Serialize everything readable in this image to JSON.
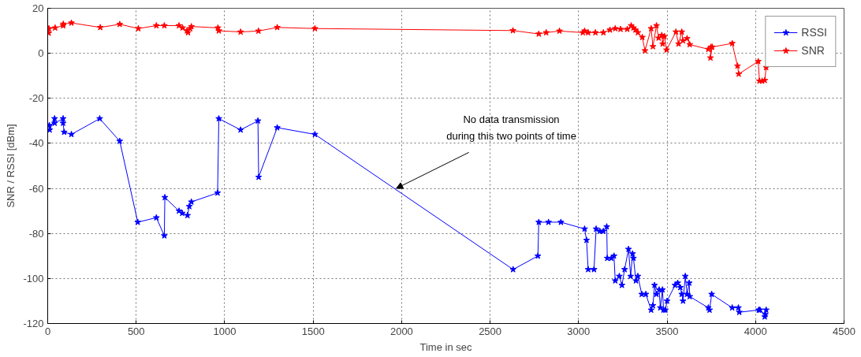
{
  "chart_data": {
    "type": "line",
    "xlabel": "Time in sec",
    "ylabel": "SNR / RSSI [dBm]",
    "xlim": [
      0,
      4500
    ],
    "xticks": [
      0,
      500,
      1000,
      1500,
      2000,
      2500,
      3000,
      3500,
      4000,
      4500
    ],
    "ylim": [
      -120,
      20
    ],
    "yticks": [
      -120,
      -100,
      -80,
      -60,
      -40,
      -20,
      0,
      20
    ],
    "grid": true,
    "legend": "top right",
    "marker": "star",
    "line_style": "solid",
    "annotations": [
      {
        "text": "No data transmission\nduring this two points of time",
        "x": 1970,
        "y": -60
      }
    ],
    "series": [
      {
        "name": "RSSI",
        "color": "#0000ff",
        "x": [
          9,
          11,
          39,
          39,
          87,
          87,
          93,
          134,
          294,
          407,
          509,
          614,
          659,
          662,
          742,
          760,
          790,
          800,
          812,
          960,
          967,
          1090,
          1188,
          1192,
          1297,
          1510,
          2630,
          2770,
          2775,
          2830,
          2900,
          3034,
          3045,
          3054,
          3087,
          3099,
          3120,
          3140,
          3159,
          3162,
          3185,
          3200,
          3207,
          3230,
          3245,
          3260,
          3282,
          3294,
          3305,
          3310,
          3324,
          3335,
          3357,
          3380,
          3410,
          3420,
          3429,
          3440,
          3455,
          3462,
          3474,
          3480,
          3490,
          3500,
          3545,
          3560,
          3575,
          3583,
          3590,
          3603,
          3613,
          3625,
          3628,
          3733,
          3740,
          3752,
          3868,
          3903,
          3908,
          4018,
          4025,
          4055,
          4052,
          4060
        ],
        "values": [
          -32,
          -34,
          -29,
          -31,
          -29,
          -31,
          -35,
          -36,
          -29,
          -39,
          -75,
          -73,
          -81,
          -64,
          -70,
          -71,
          -72,
          -68,
          -66,
          -62,
          -29,
          -34,
          -30,
          -55,
          -33,
          -36,
          -96,
          -90,
          -75,
          -75,
          -75,
          -78,
          -83,
          -96,
          -96,
          -78,
          -79,
          -79,
          -77,
          -91,
          -91,
          -90,
          -101,
          -99,
          -103,
          -96,
          -87,
          -99,
          -89,
          -91,
          -101,
          -99,
          -107,
          -107,
          -114,
          -112,
          -103,
          -107,
          -105,
          -113,
          -105,
          -114,
          -114,
          -110,
          -103,
          -102,
          -104,
          -107,
          -110,
          -99,
          -107,
          -102,
          -108,
          -113,
          -114,
          -107,
          -113,
          -113,
          -115,
          -114,
          -114,
          -116,
          -117,
          -114
        ]
      },
      {
        "name": "SNR",
        "color": "#ff0000",
        "x": [
          6,
          7,
          42,
          87,
          88,
          134,
          297,
          407,
          512,
          614,
          659,
          742,
          762,
          787,
          793,
          805,
          812,
          962,
          967,
          1090,
          1191,
          1297,
          1510,
          2629,
          2775,
          2817,
          2892,
          3024,
          3034,
          3054,
          3095,
          3140,
          3177,
          3207,
          3237,
          3275,
          3297,
          3310,
          3321,
          3335,
          3360,
          3375,
          3410,
          3420,
          3440,
          3452,
          3470,
          3475,
          3485,
          3497,
          3550,
          3565,
          3583,
          3590,
          3613,
          3628,
          3733,
          3748,
          3745,
          3755,
          3868,
          3898,
          3905,
          4015,
          4022,
          4037,
          4052,
          4060
        ],
        "values": [
          9,
          11,
          11.3,
          12.3,
          13,
          13.5,
          11.5,
          12.9,
          11,
          12.3,
          12.3,
          12.3,
          11.3,
          10,
          9.2,
          11,
          11.9,
          11.3,
          10,
          9.5,
          9.9,
          11.5,
          11,
          10.1,
          8.6,
          9.2,
          9.9,
          9.2,
          9.9,
          9.2,
          9.2,
          9.2,
          10.4,
          11,
          10.7,
          10.7,
          12.3,
          11.3,
          10.4,
          9.2,
          7.1,
          1.2,
          11,
          3,
          12.3,
          6.8,
          8,
          4.2,
          7.5,
          1.5,
          9.5,
          4.2,
          9.5,
          5.6,
          6.6,
          3.9,
          1.8,
          2.8,
          -2,
          2.8,
          4.4,
          -5.6,
          -9.2,
          -3.6,
          -12.3,
          -12.3,
          -12,
          -6.3
        ]
      }
    ]
  }
}
